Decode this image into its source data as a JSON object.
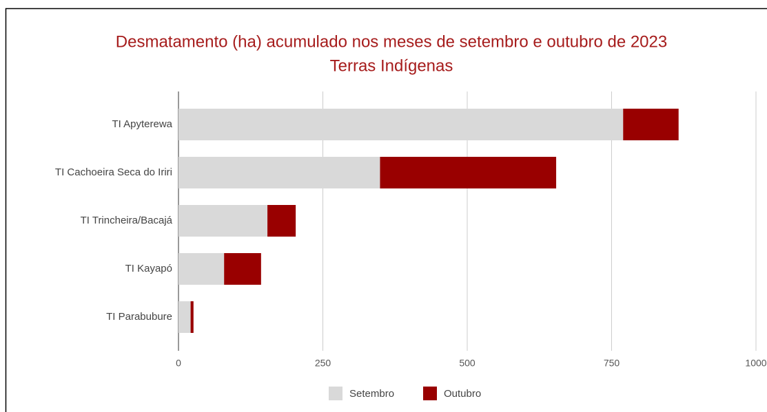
{
  "chart_data": {
    "type": "stacked_bar_horizontal",
    "title": "Desmatamento (ha) acumulado nos meses de setembro e outubro de 2023",
    "subtitle": "Terras Indígenas",
    "categories": [
      "TI Apyterewa",
      "TI Cachoeira Seca do Iriri",
      "TI Trincheira/Bacajá",
      "TI Kayapó",
      "TI Parabubure"
    ],
    "series": [
      {
        "name": "Setembro",
        "color": "#d9d9d9",
        "values": [
          770,
          349,
          154,
          79,
          21
        ]
      },
      {
        "name": "Outubro",
        "color": "#990000",
        "values": [
          96,
          305,
          49,
          64,
          5
        ]
      }
    ],
    "xlim": [
      0,
      1000
    ],
    "xticks": [
      0,
      250,
      500,
      750,
      1000
    ],
    "grid": true,
    "legend": "bottom"
  }
}
